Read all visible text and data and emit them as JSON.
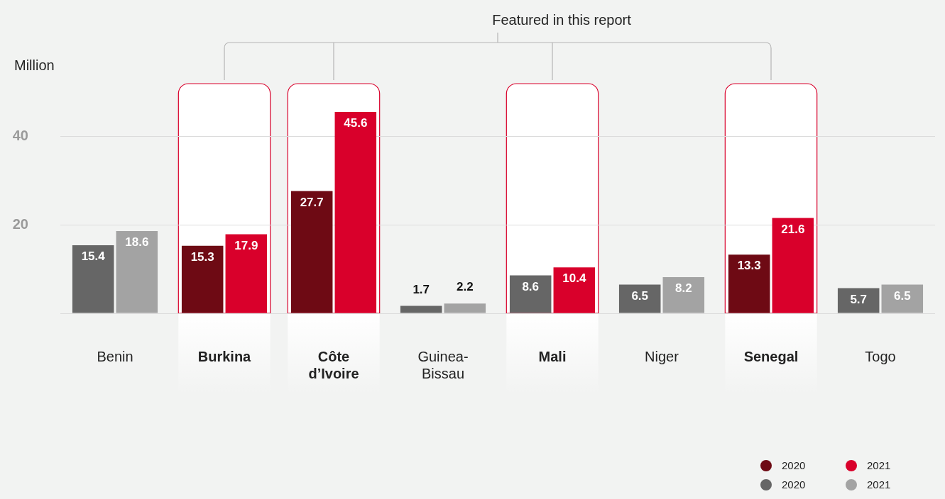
{
  "chart_data": {
    "type": "bar",
    "ylabel": "Million",
    "annotations": [
      "Featured in this report"
    ],
    "categories": [
      "Benin",
      "Burkina",
      "Côte d’Ivoire",
      "Guinea-Bissau",
      "Mali",
      "Niger",
      "Senegal",
      "Togo"
    ],
    "series": [
      {
        "name": "2020",
        "color": "#6e0a14",
        "values": [
          null,
          15.3,
          27.7,
          null,
          null,
          null,
          13.3,
          null
        ]
      },
      {
        "name": "2020",
        "color": "#666666",
        "values": [
          15.4,
          null,
          null,
          1.7,
          8.6,
          6.5,
          null,
          5.7
        ]
      },
      {
        "name": "2021",
        "color": "#d9002b",
        "values": [
          null,
          17.9,
          45.6,
          null,
          10.4,
          null,
          21.6,
          null
        ]
      },
      {
        "name": "2021",
        "color": "#a3a3a3",
        "values": [
          18.6,
          null,
          null,
          2.2,
          null,
          8.2,
          null,
          6.5
        ]
      }
    ],
    "ylim": [
      0,
      52
    ],
    "yticks": [
      {
        "value": 0,
        "label": null
      },
      20,
      40
    ],
    "grid": "y",
    "data_labels": true,
    "legend": "bottom right",
    "bands": [
      {
        "axis": "x",
        "from": "Burkina",
        "to": "Burkina",
        "color": "#ffffff"
      },
      {
        "axis": "x",
        "from": "Côte d’Ivoire",
        "to": "Côte d’Ivoire",
        "color": "#ffffff"
      },
      {
        "axis": "x",
        "from": "Mali",
        "to": "Mali",
        "color": "#ffffff"
      },
      {
        "axis": "x",
        "from": "Senegal",
        "to": "Senegal",
        "color": "#ffffff"
      }
    ]
  }
}
